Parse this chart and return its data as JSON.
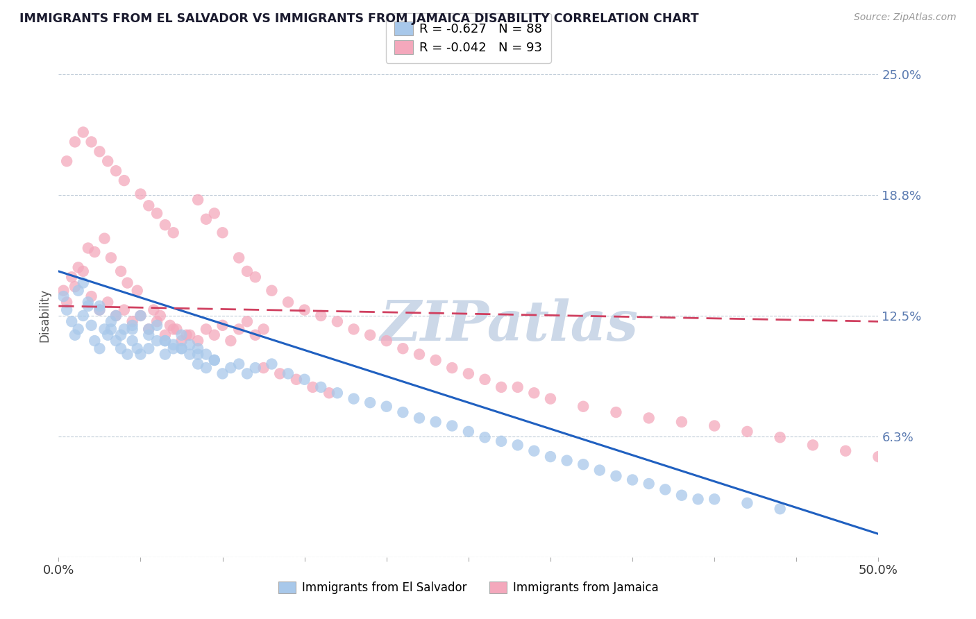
{
  "title": "IMMIGRANTS FROM EL SALVADOR VS IMMIGRANTS FROM JAMAICA DISABILITY CORRELATION CHART",
  "source": "Source: ZipAtlas.com",
  "ylabel": "Disability",
  "xlim": [
    0.0,
    0.5
  ],
  "ylim": [
    0.0,
    0.25
  ],
  "ytick_vals": [
    0.0,
    0.0625,
    0.125,
    0.1875,
    0.25
  ],
  "ytick_labels": [
    "",
    "6.3%",
    "12.5%",
    "18.8%",
    "25.0%"
  ],
  "xtick_vals": [
    0.0,
    0.05,
    0.1,
    0.15,
    0.2,
    0.25,
    0.3,
    0.35,
    0.4,
    0.45,
    0.5
  ],
  "xtick_labels": [
    "0.0%",
    "",
    "",
    "",
    "",
    "",
    "",
    "",
    "",
    "",
    "50.0%"
  ],
  "series": [
    {
      "name": "Immigrants from El Salvador",
      "color": "#a8c8ea",
      "edge_color": "#7aaad0",
      "R": -0.627,
      "N": 88,
      "trend_color": "#2060c0",
      "trend_x": [
        0.0,
        0.5
      ],
      "trend_y_start": 0.148,
      "trend_y_end": 0.012
    },
    {
      "name": "Immigrants from Jamaica",
      "color": "#f4a8bc",
      "edge_color": "#e07890",
      "R": -0.042,
      "N": 93,
      "trend_color": "#d04060",
      "trend_x": [
        0.0,
        0.5
      ],
      "trend_y_start": 0.13,
      "trend_y_end": 0.122
    }
  ],
  "watermark": "ZIPatlas",
  "watermark_color": "#ccd8e8",
  "background_color": "#ffffff",
  "grid_color": "#c0ccd8",
  "title_color": "#1a1a2e",
  "axis_label_color": "#5a7ab0",
  "el_salvador_points_x": [
    0.003,
    0.005,
    0.008,
    0.01,
    0.012,
    0.015,
    0.018,
    0.02,
    0.022,
    0.025,
    0.028,
    0.03,
    0.032,
    0.035,
    0.038,
    0.04,
    0.042,
    0.045,
    0.048,
    0.05,
    0.012,
    0.018,
    0.025,
    0.032,
    0.038,
    0.045,
    0.055,
    0.06,
    0.065,
    0.07,
    0.075,
    0.08,
    0.085,
    0.09,
    0.095,
    0.1,
    0.105,
    0.11,
    0.115,
    0.12,
    0.05,
    0.055,
    0.06,
    0.065,
    0.07,
    0.075,
    0.08,
    0.085,
    0.09,
    0.095,
    0.13,
    0.14,
    0.15,
    0.16,
    0.17,
    0.18,
    0.19,
    0.2,
    0.21,
    0.22,
    0.23,
    0.24,
    0.25,
    0.26,
    0.27,
    0.28,
    0.29,
    0.3,
    0.31,
    0.32,
    0.33,
    0.34,
    0.35,
    0.36,
    0.37,
    0.38,
    0.39,
    0.4,
    0.42,
    0.44,
    0.015,
    0.025,
    0.035,
    0.045,
    0.055,
    0.065,
    0.075,
    0.085
  ],
  "el_salvador_points_y": [
    0.135,
    0.128,
    0.122,
    0.115,
    0.118,
    0.125,
    0.132,
    0.12,
    0.112,
    0.108,
    0.118,
    0.115,
    0.122,
    0.112,
    0.108,
    0.118,
    0.105,
    0.112,
    0.108,
    0.105,
    0.138,
    0.13,
    0.128,
    0.118,
    0.115,
    0.118,
    0.108,
    0.112,
    0.105,
    0.11,
    0.108,
    0.105,
    0.1,
    0.098,
    0.102,
    0.095,
    0.098,
    0.1,
    0.095,
    0.098,
    0.125,
    0.118,
    0.12,
    0.112,
    0.108,
    0.115,
    0.11,
    0.108,
    0.105,
    0.102,
    0.1,
    0.095,
    0.092,
    0.088,
    0.085,
    0.082,
    0.08,
    0.078,
    0.075,
    0.072,
    0.07,
    0.068,
    0.065,
    0.062,
    0.06,
    0.058,
    0.055,
    0.052,
    0.05,
    0.048,
    0.045,
    0.042,
    0.04,
    0.038,
    0.035,
    0.032,
    0.03,
    0.03,
    0.028,
    0.025,
    0.142,
    0.13,
    0.125,
    0.12,
    0.115,
    0.112,
    0.108,
    0.105
  ],
  "jamaica_points_x": [
    0.003,
    0.008,
    0.012,
    0.018,
    0.005,
    0.01,
    0.015,
    0.02,
    0.025,
    0.03,
    0.035,
    0.04,
    0.045,
    0.05,
    0.055,
    0.06,
    0.065,
    0.07,
    0.075,
    0.08,
    0.022,
    0.028,
    0.032,
    0.038,
    0.042,
    0.048,
    0.058,
    0.062,
    0.068,
    0.072,
    0.078,
    0.085,
    0.09,
    0.095,
    0.1,
    0.105,
    0.11,
    0.115,
    0.12,
    0.125,
    0.085,
    0.09,
    0.095,
    0.1,
    0.11,
    0.115,
    0.12,
    0.13,
    0.14,
    0.15,
    0.16,
    0.17,
    0.18,
    0.19,
    0.2,
    0.21,
    0.22,
    0.23,
    0.24,
    0.25,
    0.26,
    0.27,
    0.28,
    0.29,
    0.3,
    0.32,
    0.34,
    0.36,
    0.38,
    0.4,
    0.42,
    0.44,
    0.46,
    0.48,
    0.5,
    0.005,
    0.01,
    0.015,
    0.02,
    0.025,
    0.03,
    0.035,
    0.04,
    0.05,
    0.055,
    0.06,
    0.065,
    0.07,
    0.125,
    0.135,
    0.145,
    0.155,
    0.165
  ],
  "jamaica_points_y": [
    0.138,
    0.145,
    0.15,
    0.16,
    0.132,
    0.14,
    0.148,
    0.135,
    0.128,
    0.132,
    0.125,
    0.128,
    0.122,
    0.125,
    0.118,
    0.122,
    0.115,
    0.118,
    0.112,
    0.115,
    0.158,
    0.165,
    0.155,
    0.148,
    0.142,
    0.138,
    0.128,
    0.125,
    0.12,
    0.118,
    0.115,
    0.112,
    0.118,
    0.115,
    0.12,
    0.112,
    0.118,
    0.122,
    0.115,
    0.118,
    0.185,
    0.175,
    0.178,
    0.168,
    0.155,
    0.148,
    0.145,
    0.138,
    0.132,
    0.128,
    0.125,
    0.122,
    0.118,
    0.115,
    0.112,
    0.108,
    0.105,
    0.102,
    0.098,
    0.095,
    0.092,
    0.088,
    0.088,
    0.085,
    0.082,
    0.078,
    0.075,
    0.072,
    0.07,
    0.068,
    0.065,
    0.062,
    0.058,
    0.055,
    0.052,
    0.205,
    0.215,
    0.22,
    0.215,
    0.21,
    0.205,
    0.2,
    0.195,
    0.188,
    0.182,
    0.178,
    0.172,
    0.168,
    0.098,
    0.095,
    0.092,
    0.088,
    0.085
  ]
}
